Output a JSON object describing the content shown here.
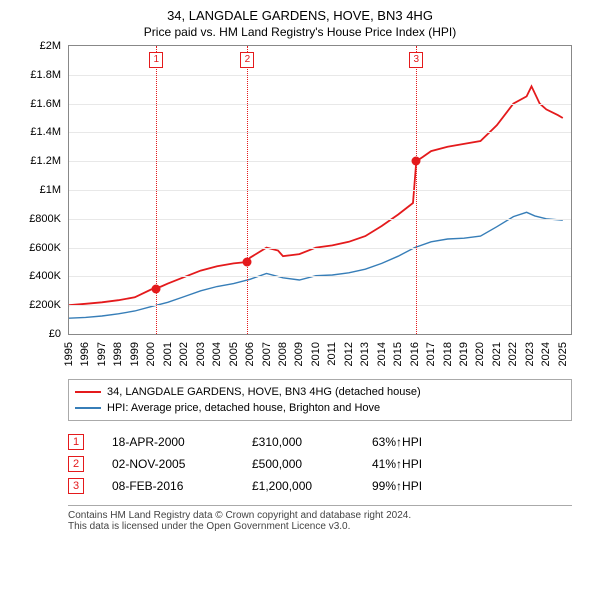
{
  "title": "34, LANGDALE GARDENS, HOVE, BN3 4HG",
  "subtitle": "Price paid vs. HM Land Registry's House Price Index (HPI)",
  "chart": {
    "ylim": [
      0,
      2000000
    ],
    "ytick_step": 200000,
    "ytick_labels": [
      "£0",
      "£200K",
      "£400K",
      "£600K",
      "£800K",
      "£1M",
      "£1.2M",
      "£1.4M",
      "£1.6M",
      "£1.8M",
      "£2M"
    ],
    "xlim": [
      1995,
      2025.5
    ],
    "xticks": [
      1995,
      1996,
      1997,
      1998,
      1999,
      2000,
      2001,
      2002,
      2003,
      2004,
      2005,
      2006,
      2007,
      2008,
      2009,
      2010,
      2011,
      2012,
      2013,
      2014,
      2015,
      2016,
      2017,
      2018,
      2019,
      2020,
      2021,
      2022,
      2023,
      2024,
      2025
    ],
    "background_color": "#ffffff",
    "grid_color": "#e8e8e8",
    "border_color": "#888888",
    "series": [
      {
        "name": "subject",
        "color": "#e41a1c",
        "width": 1.8,
        "data": [
          [
            1995,
            200000
          ],
          [
            1996,
            210000
          ],
          [
            1997,
            220000
          ],
          [
            1998,
            235000
          ],
          [
            1999,
            255000
          ],
          [
            2000,
            310000
          ],
          [
            2000.6,
            330000
          ],
          [
            2001,
            350000
          ],
          [
            2002,
            395000
          ],
          [
            2003,
            440000
          ],
          [
            2004,
            470000
          ],
          [
            2005,
            490000
          ],
          [
            2005.8,
            500000
          ],
          [
            2006,
            530000
          ],
          [
            2007,
            600000
          ],
          [
            2007.7,
            580000
          ],
          [
            2008,
            540000
          ],
          [
            2009,
            555000
          ],
          [
            2010,
            600000
          ],
          [
            2011,
            615000
          ],
          [
            2012,
            640000
          ],
          [
            2013,
            680000
          ],
          [
            2014,
            750000
          ],
          [
            2015,
            830000
          ],
          [
            2015.9,
            910000
          ],
          [
            2016.1,
            1200000
          ],
          [
            2016.5,
            1230000
          ],
          [
            2017,
            1270000
          ],
          [
            2018,
            1300000
          ],
          [
            2019,
            1320000
          ],
          [
            2020,
            1340000
          ],
          [
            2021,
            1450000
          ],
          [
            2022,
            1600000
          ],
          [
            2022.8,
            1650000
          ],
          [
            2023.1,
            1720000
          ],
          [
            2023.6,
            1600000
          ],
          [
            2024,
            1560000
          ],
          [
            2024.7,
            1520000
          ],
          [
            2025,
            1500000
          ]
        ]
      },
      {
        "name": "hpi",
        "color": "#377eb8",
        "width": 1.4,
        "data": [
          [
            1995,
            110000
          ],
          [
            1996,
            115000
          ],
          [
            1997,
            125000
          ],
          [
            1998,
            140000
          ],
          [
            1999,
            160000
          ],
          [
            2000,
            190000
          ],
          [
            2001,
            220000
          ],
          [
            2002,
            260000
          ],
          [
            2003,
            300000
          ],
          [
            2004,
            330000
          ],
          [
            2005,
            350000
          ],
          [
            2006,
            380000
          ],
          [
            2007,
            420000
          ],
          [
            2008,
            390000
          ],
          [
            2009,
            375000
          ],
          [
            2010,
            405000
          ],
          [
            2011,
            410000
          ],
          [
            2012,
            425000
          ],
          [
            2013,
            450000
          ],
          [
            2014,
            490000
          ],
          [
            2015,
            540000
          ],
          [
            2016,
            600000
          ],
          [
            2017,
            640000
          ],
          [
            2018,
            660000
          ],
          [
            2019,
            665000
          ],
          [
            2020,
            680000
          ],
          [
            2021,
            745000
          ],
          [
            2022,
            815000
          ],
          [
            2022.8,
            845000
          ],
          [
            2023.3,
            820000
          ],
          [
            2024,
            800000
          ],
          [
            2025,
            790000
          ]
        ]
      }
    ],
    "sale_markers": [
      {
        "n": "1",
        "x": 2000.3,
        "y": 310000,
        "color": "#e41a1c"
      },
      {
        "n": "2",
        "x": 2005.84,
        "y": 500000,
        "color": "#e41a1c"
      },
      {
        "n": "3",
        "x": 2016.1,
        "y": 1200000,
        "color": "#e41a1c"
      }
    ]
  },
  "legend": {
    "items": [
      {
        "color": "#e41a1c",
        "label": "34, LANGDALE GARDENS, HOVE, BN3 4HG (detached house)"
      },
      {
        "color": "#377eb8",
        "label": "HPI: Average price, detached house, Brighton and Hove"
      }
    ]
  },
  "sales": [
    {
      "n": "1",
      "date": "18-APR-2000",
      "price": "£310,000",
      "diff": "63%",
      "dir": "↑",
      "note": "HPI",
      "color": "#e41a1c"
    },
    {
      "n": "2",
      "date": "02-NOV-2005",
      "price": "£500,000",
      "diff": "41%",
      "dir": "↑",
      "note": "HPI",
      "color": "#e41a1c"
    },
    {
      "n": "3",
      "date": "08-FEB-2016",
      "price": "£1,200,000",
      "diff": "99%",
      "dir": "↑",
      "note": "HPI",
      "color": "#e41a1c"
    }
  ],
  "attribution": {
    "l1": "Contains HM Land Registry data © Crown copyright and database right 2024.",
    "l2": "This data is licensed under the Open Government Licence v3.0."
  }
}
